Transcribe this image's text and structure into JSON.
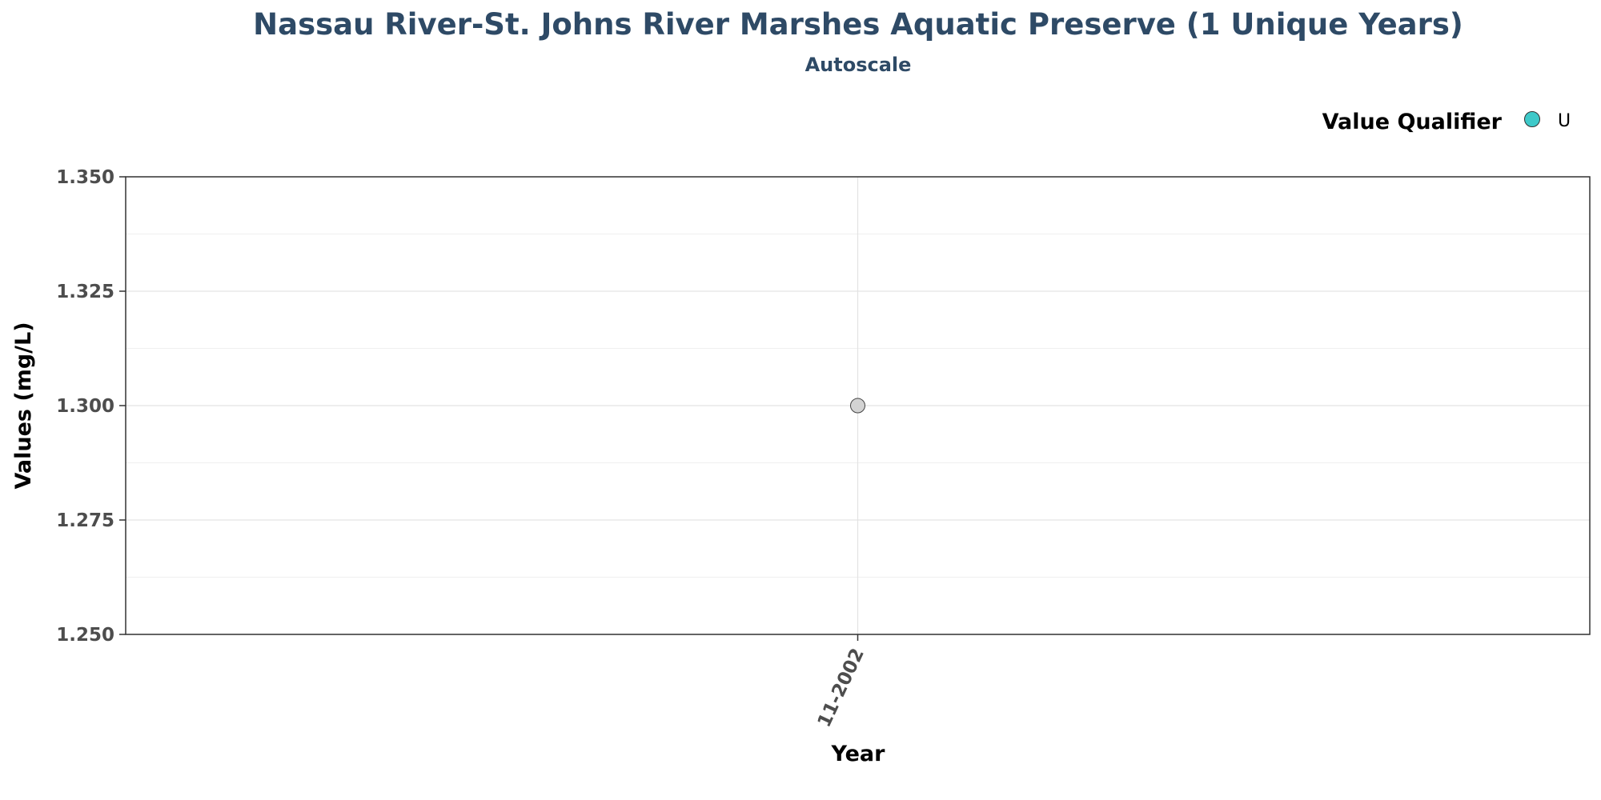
{
  "chart_data": {
    "type": "scatter",
    "title": "Nassau River-St. Johns River Marshes Aquatic Preserve (1 Unique Years)",
    "subtitle": "Autoscale",
    "xlabel": "Year",
    "ylabel": "Values (mg/L)",
    "x_categories": [
      "11-2002"
    ],
    "ylim": [
      1.25,
      1.35
    ],
    "y_ticks": [
      "1.250",
      "1.275",
      "1.300",
      "1.325",
      "1.350"
    ],
    "grid": true,
    "legend": {
      "title": "Value Qualifier",
      "placement": "top-right",
      "items": [
        {
          "label": "U",
          "color": "#3ec9c9"
        }
      ]
    },
    "series": [
      {
        "points": [
          {
            "x": "11-2002",
            "y": 1.3,
            "color": "#d3d3d3"
          }
        ]
      }
    ]
  }
}
